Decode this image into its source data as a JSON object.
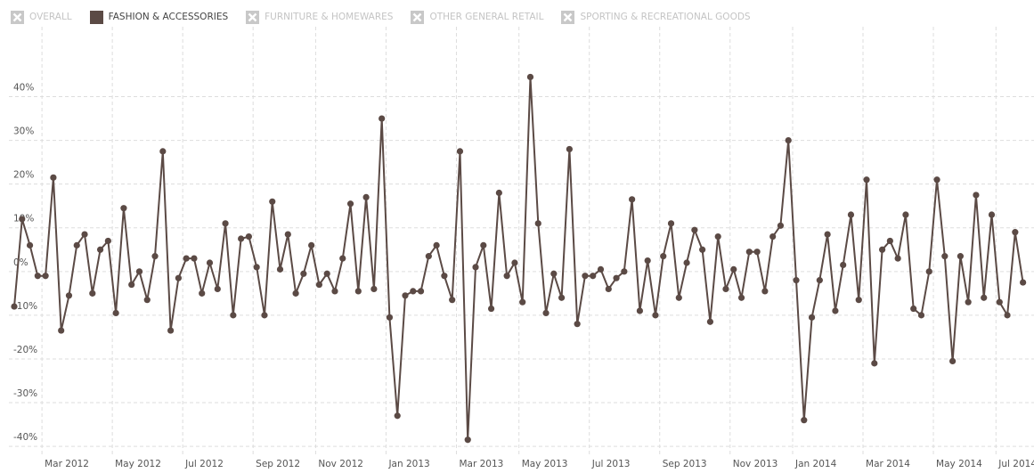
{
  "chart_data": {
    "type": "line",
    "hidden_series": [
      "OVERALL",
      "FURNITURE & HOMEWARES",
      "OTHER GENERAL RETAIL",
      "SPORTING & RECREATIONAL GOODS"
    ],
    "categories": [
      null,
      null,
      null,
      null,
      "Mar 2012",
      null,
      null,
      null,
      null,
      null,
      null,
      null,
      null,
      "May 2012",
      null,
      null,
      null,
      null,
      null,
      null,
      null,
      null,
      "Jul 2012",
      null,
      null,
      null,
      null,
      null,
      null,
      null,
      null,
      "Sep 2012",
      null,
      null,
      null,
      null,
      null,
      null,
      null,
      "Nov 2012",
      null,
      null,
      null,
      null,
      null,
      null,
      null,
      null,
      "Jan 2013",
      null,
      null,
      null,
      null,
      null,
      null,
      null,
      null,
      "Mar 2013",
      null,
      null,
      null,
      null,
      null,
      null,
      null,
      "May 2013",
      null,
      null,
      null,
      null,
      null,
      null,
      null,
      null,
      "Jul 2013",
      null,
      null,
      null,
      null,
      null,
      null,
      null,
      null,
      "Sep 2013",
      null,
      null,
      null,
      null,
      null,
      null,
      null,
      null,
      "Nov 2013",
      null,
      null,
      null,
      null,
      null,
      null,
      null,
      "Jan 2014",
      null,
      null,
      null,
      null,
      null,
      null,
      null,
      null,
      "Mar 2014",
      null,
      null,
      null,
      null,
      null,
      null,
      null,
      null,
      "May 2014",
      null,
      null,
      null,
      null,
      null,
      null,
      null,
      "Jul 2014",
      null,
      null,
      null
    ],
    "series": [
      {
        "name": "FASHION & ACCESSORIES",
        "color": "#5b4a45",
        "values": [
          -8,
          12,
          6,
          -1,
          -1,
          21.5,
          -13.5,
          -5.5,
          6,
          8.5,
          -5,
          5,
          7,
          -9.5,
          14.5,
          -3,
          0,
          -6.5,
          3.5,
          27.5,
          -13.5,
          -1.5,
          3,
          3,
          -5,
          2,
          -4,
          11,
          -10,
          7.5,
          8,
          1,
          -10,
          16,
          0.5,
          8.5,
          -5,
          -0.5,
          6,
          -3,
          -0.5,
          -4.5,
          3,
          15.5,
          -4.5,
          17,
          -4,
          35,
          -10.5,
          -33,
          -5.5,
          -4.5,
          -4.5,
          3.5,
          6,
          -1,
          -6.5,
          27.5,
          -38.5,
          1,
          6,
          -8.5,
          18,
          -1,
          2,
          -7,
          44.5,
          11,
          -9.5,
          -0.5,
          -6,
          28,
          -12,
          -1,
          -1,
          0.5,
          -4,
          -1.5,
          0,
          16.5,
          -9,
          2.5,
          -10,
          3.5,
          11,
          -6,
          2,
          9.5,
          5,
          -11.5,
          8,
          -4,
          0.5,
          -6,
          4.5,
          4.5,
          -4.5,
          8,
          10.5,
          30,
          -2,
          -34,
          -10.5,
          -2,
          8.5,
          -9,
          1.5,
          13,
          -6.5,
          21,
          -21,
          5,
          7,
          3,
          13,
          -8.5,
          -10,
          0,
          21,
          3.5,
          -20.5,
          3.5,
          -7,
          17.5,
          -6,
          13,
          -7,
          -10,
          9,
          -2.5
        ]
      }
    ],
    "ylim": [
      -41,
      45
    ],
    "yticks": [
      {
        "value": -40,
        "label": "-40%"
      },
      {
        "value": -30,
        "label": "-30%"
      },
      {
        "value": -20,
        "label": "-20%"
      },
      {
        "value": -10,
        "label": "-10%"
      },
      {
        "value": 0,
        "label": "0%"
      },
      {
        "value": 10,
        "label": "10%"
      },
      {
        "value": 20,
        "label": "20%"
      },
      {
        "value": 30,
        "label": "30%"
      },
      {
        "value": 40,
        "label": "40%"
      }
    ],
    "grid": true
  }
}
